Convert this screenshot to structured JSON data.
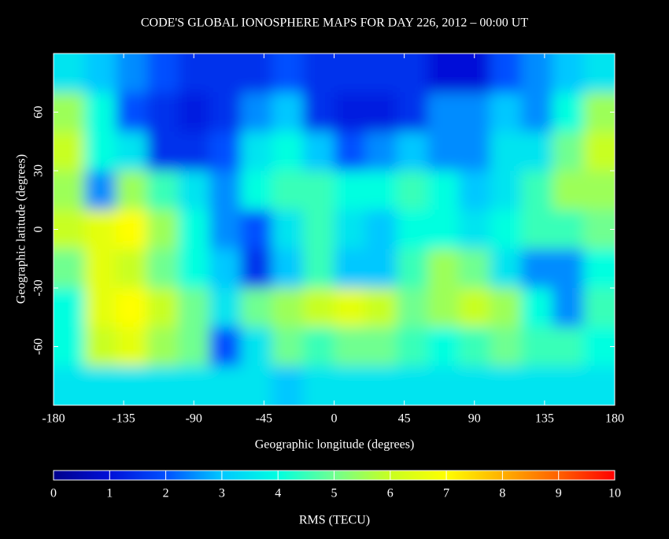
{
  "chart_data": {
    "type": "heatmap",
    "title": "CODE'S GLOBAL IONOSPHERE MAPS FOR DAY 226, 2012 – 00:00 UT",
    "x_label": "Geographic longitude (degrees)",
    "y_label": "Geographic latitude (degrees)",
    "colorbar_label": "RMS (TECU)",
    "xlim": [
      -180,
      180
    ],
    "ylim": [
      -90,
      90
    ],
    "xticks": [
      -180,
      -135,
      -90,
      -45,
      0,
      45,
      90,
      135,
      180
    ],
    "yticks": [
      -60,
      -30,
      0,
      30,
      60
    ],
    "clim": [
      0,
      10
    ],
    "cticks": [
      0,
      1,
      2,
      3,
      4,
      5,
      6,
      7,
      8,
      9,
      10
    ],
    "colorscale": [
      "#00008c",
      "#0010d8",
      "#0050ff",
      "#00c8ff",
      "#00ffe0",
      "#70ff90",
      "#c8ff20",
      "#ffff00",
      "#ffb000",
      "#ff6000",
      "#ff0000"
    ],
    "x": [
      -170,
      -150,
      -130,
      -110,
      -90,
      -70,
      -50,
      -30,
      -10,
      10,
      30,
      50,
      70,
      90,
      110,
      130,
      150,
      170
    ],
    "y": [
      80,
      60,
      40,
      20,
      0,
      -20,
      -40,
      -60,
      -80
    ],
    "z": [
      [
        3.5,
        3,
        2.5,
        2,
        1.5,
        1.5,
        1.5,
        2,
        1.5,
        1.5,
        1.5,
        1.5,
        1,
        1,
        2,
        2.5,
        3,
        3.5
      ],
      [
        5.5,
        4,
        2,
        1.5,
        1.2,
        1.5,
        2.5,
        3,
        1.5,
        1.2,
        1.2,
        1.5,
        2.5,
        2.5,
        3,
        2.5,
        4,
        5.5
      ],
      [
        6,
        4,
        3.5,
        1.5,
        1.5,
        2,
        3.5,
        4,
        3,
        2,
        2.5,
        3,
        2.5,
        2.5,
        3.5,
        3.5,
        5,
        6
      ],
      [
        5.5,
        2.5,
        5.5,
        4.5,
        3.5,
        2.5,
        4,
        4.5,
        4.5,
        4,
        4,
        4.5,
        4,
        3,
        3.5,
        4.5,
        5.5,
        5.5
      ],
      [
        6,
        6.5,
        7,
        5.5,
        4,
        2.5,
        2,
        3.5,
        4.5,
        3.5,
        3,
        4,
        4,
        3.5,
        4,
        4.5,
        4.5,
        5
      ],
      [
        5,
        6.5,
        6,
        5,
        4,
        3,
        1.5,
        3,
        4.5,
        3,
        3,
        4.5,
        5.5,
        5,
        3.5,
        2.5,
        2.5,
        4
      ],
      [
        4,
        6.5,
        7,
        6,
        5,
        3.5,
        5,
        5.5,
        6,
        6.5,
        6,
        5,
        5.5,
        6,
        5.5,
        4,
        2.5,
        4.5
      ],
      [
        4,
        6,
        6.5,
        5.5,
        5,
        2,
        3.5,
        5,
        4.5,
        5,
        5,
        4.5,
        4,
        4.5,
        5,
        4.5,
        4.5,
        4
      ],
      [
        3.5,
        3.5,
        3.5,
        3.5,
        3.5,
        3.5,
        3.5,
        3,
        3.5,
        3.5,
        3.5,
        3.5,
        3.5,
        3.5,
        3.5,
        3.5,
        3.5,
        3.5
      ]
    ]
  }
}
